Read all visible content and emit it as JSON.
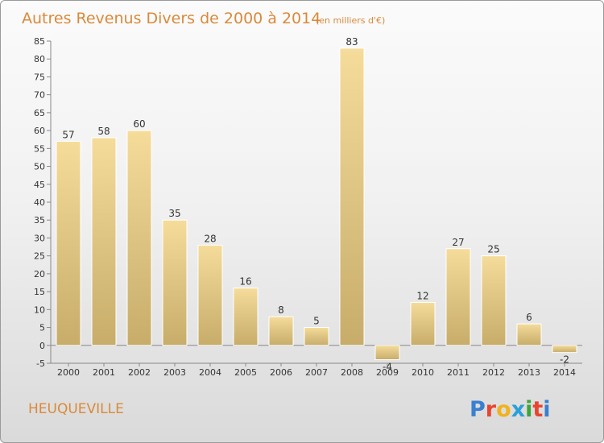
{
  "colors": {
    "title": "#d98a3a",
    "bar_light": "#f5dc9a",
    "bar_dark": "#c7ac6a",
    "axis": "#888888"
  },
  "place_label": "HEUQUEVILLE",
  "logo": {
    "text": "Proxiti",
    "letters": [
      "P",
      "r",
      "o",
      "x",
      "i",
      "t",
      "i"
    ],
    "colors": [
      "#3a7fd0",
      "#e8452f",
      "#f0b21f",
      "#2c9fd9",
      "#3aa53b",
      "#e8452f",
      "#3a7fd0"
    ]
  },
  "chart_data": {
    "type": "bar",
    "title": "Autres Revenus Divers de 2000 à 2014",
    "subtitle": "(en milliers d'€)",
    "categories": [
      "2000",
      "2001",
      "2002",
      "2003",
      "2004",
      "2005",
      "2006",
      "2007",
      "2008",
      "2009",
      "2010",
      "2011",
      "2012",
      "2013",
      "2014"
    ],
    "values": [
      57,
      58,
      60,
      35,
      28,
      16,
      8,
      5,
      83,
      -4,
      12,
      27,
      25,
      6,
      -2
    ],
    "ylim": [
      -5,
      85
    ],
    "yticks": [
      -5,
      0,
      5,
      10,
      15,
      20,
      25,
      30,
      35,
      40,
      45,
      50,
      55,
      60,
      65,
      70,
      75,
      80,
      85
    ],
    "grid": false,
    "xlabel": "",
    "ylabel": ""
  }
}
